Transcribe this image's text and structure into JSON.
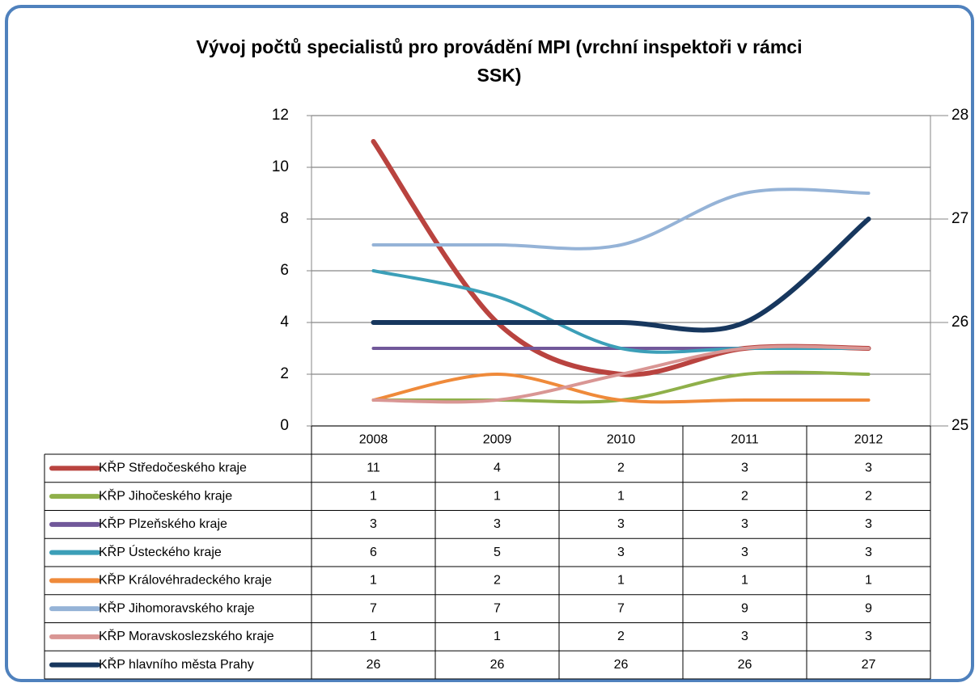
{
  "chart_data": {
    "type": "line",
    "title": "Vývoj počtů specialistů pro provádění MPI (vrchní inspektoři v rámci SSK)",
    "categories": [
      "2008",
      "2009",
      "2010",
      "2011",
      "2012"
    ],
    "series": [
      {
        "name": "KŘP Středočeského kraje",
        "color": "#b9433f",
        "values": [
          11,
          4,
          2,
          3,
          3
        ]
      },
      {
        "name": "KŘP Jihočeského kraje",
        "color": "#8fb04a",
        "values": [
          1,
          1,
          1,
          2,
          2
        ]
      },
      {
        "name": "KŘP Plzeňského kraje",
        "color": "#71589a",
        "values": [
          3,
          3,
          3,
          3,
          3
        ]
      },
      {
        "name": "KŘP Ústeckého kraje",
        "color": "#3c9fb8",
        "values": [
          6,
          5,
          3,
          3,
          3
        ]
      },
      {
        "name": "KŘP Královéhradeckého kraje",
        "color": "#ef8a3a",
        "values": [
          1,
          2,
          1,
          1,
          1
        ]
      },
      {
        "name": "KŘP Jihomoravského kraje",
        "color": "#95b3d7",
        "values": [
          7,
          7,
          7,
          9,
          9
        ]
      },
      {
        "name": "KŘP Moravskoslezského kraje",
        "color": "#d99694",
        "values": [
          1,
          1,
          2,
          3,
          3
        ]
      },
      {
        "name": "KŘP hlavního města Prahy",
        "color": "#17375e",
        "values": [
          26,
          26,
          26,
          26,
          27
        ],
        "axis": "y2"
      }
    ],
    "ylim": [
      0,
      12
    ],
    "yticks": [
      0,
      2,
      4,
      6,
      8,
      10,
      12
    ],
    "y2lim": [
      25,
      28
    ],
    "y2ticks": [
      25,
      26,
      27,
      28
    ],
    "grid": true
  }
}
